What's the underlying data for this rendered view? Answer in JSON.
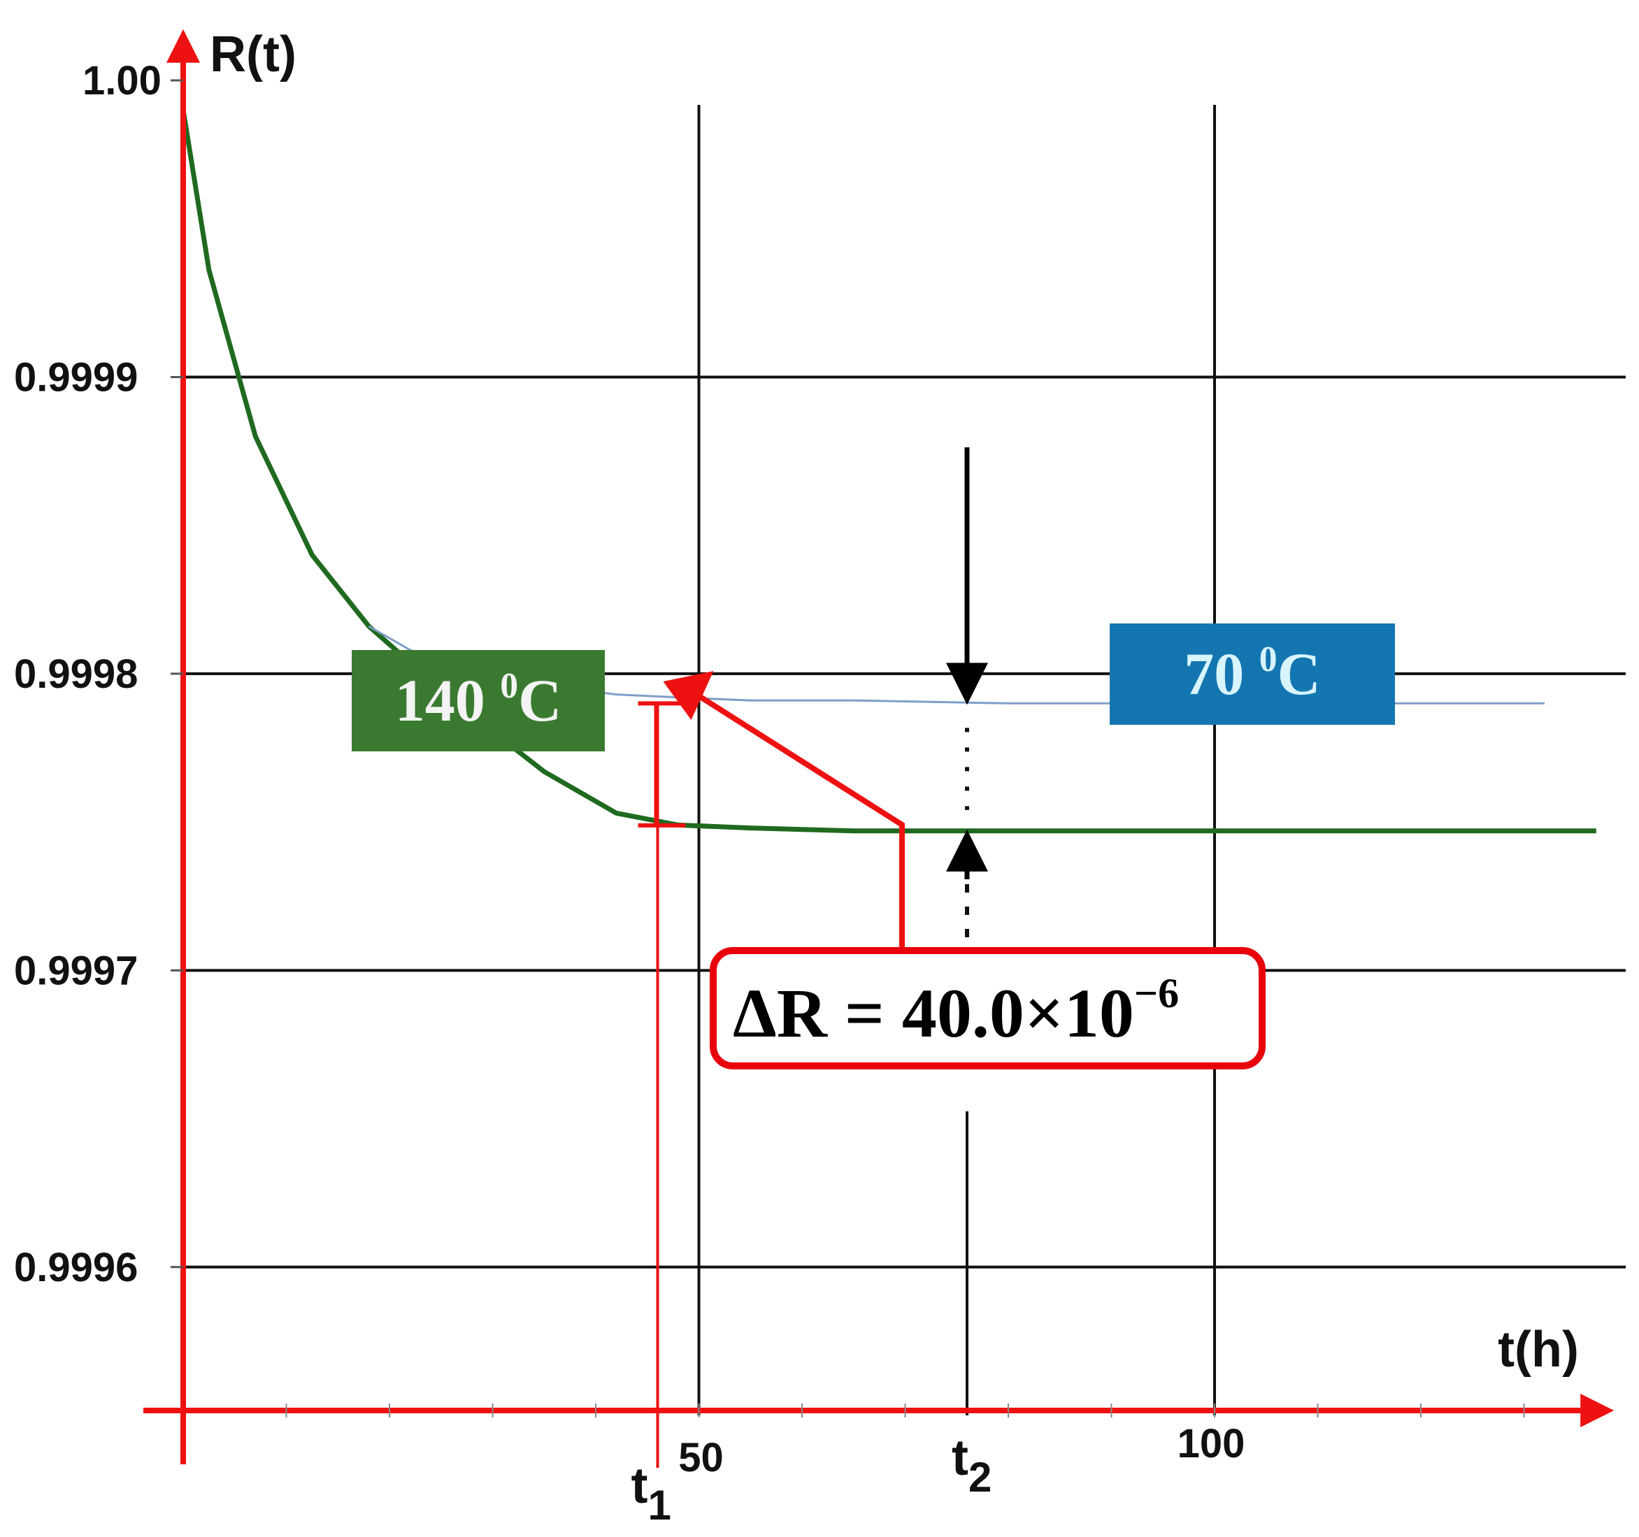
{
  "chart_data": {
    "type": "line",
    "title": "",
    "xlabel": "t(h)",
    "ylabel": "R(t)",
    "xlim": [
      0,
      138
    ],
    "ylim": [
      0.99955,
      1.0
    ],
    "xticks": [
      50,
      100
    ],
    "yticks": [
      1.0,
      0.9999,
      0.9998,
      0.9997,
      0.9996
    ],
    "ytick_labels": [
      "1.00",
      "0.9999",
      "0.9998",
      "0.9997",
      "0.9996"
    ],
    "xtick_labels": [
      "50",
      "100"
    ],
    "grid": true,
    "series": [
      {
        "name": "140 0C",
        "color": "#1f6a1f",
        "x": [
          0,
          2.5,
          7,
          12.5,
          18,
          26.5,
          35,
          42,
          48,
          55,
          65,
          80,
          100,
          120,
          137
        ],
        "y": [
          0.99999,
          0.999936,
          0.99988,
          0.99984,
          0.999816,
          0.99979,
          0.999767,
          0.999753,
          0.999749,
          0.999748,
          0.999747,
          0.999747,
          0.999747,
          0.999747,
          0.999747
        ]
      },
      {
        "name": "70 0C",
        "color": "#7f9fc8",
        "x": [
          18,
          22,
          28,
          35,
          42,
          48,
          55,
          65,
          80,
          100,
          120,
          132
        ],
        "y": [
          0.999816,
          0.999808,
          0.999801,
          0.999796,
          0.999793,
          0.999792,
          0.999791,
          0.999791,
          0.99979,
          0.99979,
          0.99979,
          0.99979
        ]
      }
    ],
    "annotations": {
      "t1": {
        "label": "t",
        "sub": "1",
        "x": 46
      },
      "t2": {
        "label": "t",
        "sub": "2",
        "x": 76
      },
      "hot_label": {
        "text": "140 ",
        "sup": "0",
        "tail": "C",
        "bg": "#3a7a30"
      },
      "cool_label": {
        "text": "70 ",
        "sup": "0",
        "tail": "C",
        "bg": "#1376b0"
      },
      "delta": {
        "text": "ΔR = 40.0×10",
        "sup": "−6",
        "border": "#e8000b"
      }
    },
    "colors": {
      "axis": "#ee1111",
      "grid": "#111111",
      "arrow": "#000000"
    }
  }
}
